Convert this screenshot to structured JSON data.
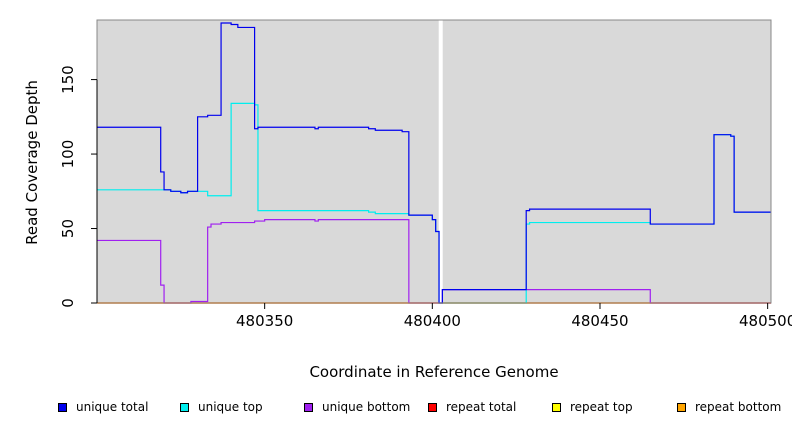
{
  "chart_data": {
    "type": "line",
    "xlabel": "Coordinate in Reference Genome",
    "ylabel": "Read Coverage Depth",
    "xlim": [
      480300,
      480501
    ],
    "ylim": [
      0,
      190
    ],
    "x_ticks": [
      480350,
      480400,
      480450,
      480500
    ],
    "y_ticks": [
      0,
      50,
      100,
      150
    ],
    "x_tick_labels": [
      "480350",
      "480400",
      "480450",
      "480500"
    ],
    "y_tick_labels": [
      "0",
      "50",
      "100",
      "150"
    ],
    "background": "#d9d9d9",
    "separator_x": 480402.5,
    "legend_position": "bottom",
    "series": [
      {
        "name": "unique total",
        "color": "#0000ee",
        "x": [
          480300,
          480317,
          480319,
          480320,
          480322,
          480325,
          480327,
          480330,
          480333,
          480337,
          480340,
          480342,
          480347,
          480348,
          480351,
          480365,
          480366,
          480381,
          480383,
          480391,
          480393,
          480400,
          480401,
          480402,
          480403,
          480428,
          480429,
          480465,
          480467,
          480484,
          480489,
          480490,
          480501
        ],
        "y": [
          118,
          118,
          88,
          76,
          75,
          74,
          75,
          125,
          126,
          188,
          187,
          185,
          117,
          118,
          118,
          117,
          118,
          117,
          116,
          115,
          59,
          56,
          48,
          0,
          9,
          62,
          63,
          53,
          53,
          113,
          112,
          61,
          61
        ]
      },
      {
        "name": "unique top",
        "color": "#00eeee",
        "x": [
          480300,
          480319,
          480320,
          480322,
          480325,
          480327,
          480330,
          480333,
          480337,
          480340,
          480347,
          480348,
          480370,
          480381,
          480383,
          480391,
          480393,
          480400,
          480401,
          480402,
          480403,
          480428,
          480429,
          480465,
          480467,
          480484,
          480489,
          480490,
          480501
        ],
        "y": [
          76,
          76,
          76,
          75,
          74,
          75,
          75,
          72,
          72,
          134,
          133,
          62,
          62,
          61,
          60,
          60,
          59,
          56,
          48,
          0,
          0,
          53,
          54,
          53,
          53,
          113,
          112,
          61,
          61
        ]
      },
      {
        "name": "unique bottom",
        "color": "#a020f0",
        "x": [
          480300,
          480317,
          480319,
          480320,
          480328,
          480330,
          480333,
          480334,
          480337,
          480347,
          480349,
          480350,
          480365,
          480366,
          480393,
          480403,
          480428,
          480465,
          480501
        ],
        "y": [
          42,
          42,
          12,
          0,
          1,
          1,
          51,
          53,
          54,
          55,
          55,
          56,
          55,
          56,
          0,
          9,
          9,
          0,
          0
        ]
      },
      {
        "name": "repeat total",
        "color": "#ff0000",
        "x": [
          480300,
          480501
        ],
        "y": [
          0,
          0
        ]
      },
      {
        "name": "repeat top",
        "color": "#ffff00",
        "x": [
          480300,
          480501
        ],
        "y": [
          0,
          0
        ]
      },
      {
        "name": "repeat bottom",
        "color": "#ffa500",
        "x": [
          480300,
          480501
        ],
        "y": [
          0,
          0
        ]
      }
    ]
  }
}
